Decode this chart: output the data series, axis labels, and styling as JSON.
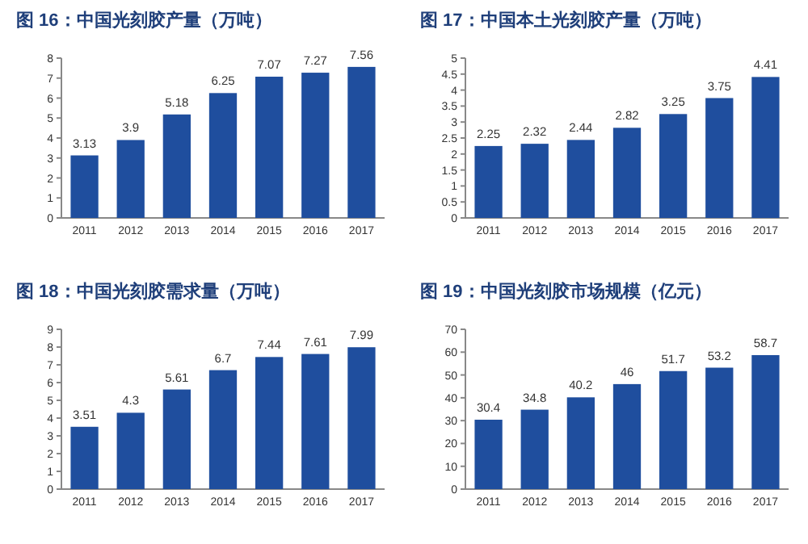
{
  "chart_data": [
    {
      "type": "bar",
      "title": "图 16：中国光刻胶产量（万吨）",
      "categories": [
        "2011",
        "2012",
        "2013",
        "2014",
        "2015",
        "2016",
        "2017"
      ],
      "values": [
        3.13,
        3.9,
        5.18,
        6.25,
        7.07,
        7.27,
        7.56
      ],
      "color": "#1f4e9e",
      "ylim": [
        0,
        8
      ],
      "yticks": [
        0,
        1,
        2,
        3,
        4,
        5,
        6,
        7,
        8
      ],
      "data_labels": true
    },
    {
      "type": "bar",
      "title": "图 17：中国本土光刻胶产量（万吨）",
      "categories": [
        "2011",
        "2012",
        "2013",
        "2014",
        "2015",
        "2016",
        "2017"
      ],
      "values": [
        2.25,
        2.32,
        2.44,
        2.82,
        3.25,
        3.75,
        4.41
      ],
      "color": "#1f4e9e",
      "ylim": [
        0,
        5
      ],
      "yticks": [
        0,
        0.5,
        1,
        1.5,
        2,
        2.5,
        3,
        3.5,
        4,
        4.5,
        5
      ],
      "data_labels": true
    },
    {
      "type": "bar",
      "title": "图 18：中国光刻胶需求量（万吨）",
      "categories": [
        "2011",
        "2012",
        "2013",
        "2014",
        "2015",
        "2016",
        "2017"
      ],
      "values": [
        3.51,
        4.3,
        5.61,
        6.7,
        7.44,
        7.61,
        7.99
      ],
      "color": "#1f4e9e",
      "ylim": [
        0,
        9
      ],
      "yticks": [
        0,
        1,
        2,
        3,
        4,
        5,
        6,
        7,
        8,
        9
      ],
      "data_labels": true
    },
    {
      "type": "bar",
      "title": "图 19：中国光刻胶市场规模（亿元）",
      "categories": [
        "2011",
        "2012",
        "2013",
        "2014",
        "2015",
        "2016",
        "2017"
      ],
      "values": [
        30.4,
        34.8,
        40.2,
        46,
        51.7,
        53.2,
        58.7
      ],
      "color": "#1f4e9e",
      "ylim": [
        0,
        70
      ],
      "yticks": [
        0,
        10,
        20,
        30,
        40,
        50,
        60,
        70
      ],
      "data_labels": true
    }
  ]
}
